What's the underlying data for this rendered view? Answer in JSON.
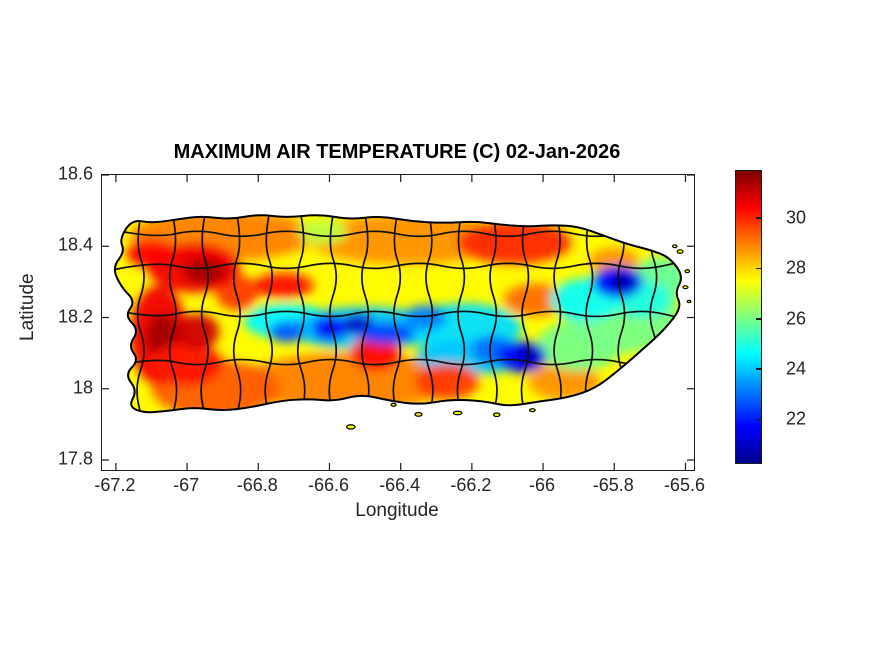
{
  "figure": {
    "background": "#ffffff",
    "text_color": "#262626",
    "axis_color": "#1a1a1a"
  },
  "chart_data": {
    "type": "heatmap",
    "title": "MAXIMUM AIR TEMPERATURE (C) 02-Jan-2026",
    "xlabel": "Longitude",
    "ylabel": "Latitude",
    "region": "Puerto Rico with municipal boundaries",
    "units": "degrees Celsius",
    "xlim": [
      -67.239,
      -65.576
    ],
    "ylim": [
      17.772,
      18.6
    ],
    "xticks": [
      -67.2,
      -67,
      -66.8,
      -66.6,
      -66.4,
      -66.2,
      -66,
      -65.8,
      -65.6
    ],
    "yticks": [
      18.6,
      18.4,
      18.2,
      18,
      17.8
    ],
    "grid": false,
    "colorbar": {
      "position": "right",
      "min": 20.3,
      "max": 31.9,
      "ticks": [
        22,
        24,
        26,
        28,
        30
      ],
      "colormap": "jet",
      "jet_stops": [
        [
          0.0,
          "#00008f"
        ],
        [
          0.125,
          "#0000ff"
        ],
        [
          0.375,
          "#00ffff"
        ],
        [
          0.625,
          "#ffff00"
        ],
        [
          0.875,
          "#ff0000"
        ],
        [
          1.0,
          "#7f0000"
        ]
      ]
    },
    "base_temperature_c": 27.6,
    "temperature_blobs": [
      {
        "lon": -66.9,
        "lat": 18.43,
        "rx": 0.26,
        "ry": 0.07,
        "c": 29.0
      },
      {
        "lon": -66.38,
        "lat": 18.42,
        "rx": 0.28,
        "ry": 0.07,
        "c": 28.8
      },
      {
        "lon": -66.08,
        "lat": 18.41,
        "rx": 0.16,
        "ry": 0.06,
        "c": 30.0
      },
      {
        "lon": -66.55,
        "lat": 18.02,
        "rx": 0.3,
        "ry": 0.08,
        "c": 29.0
      },
      {
        "lon": -66.92,
        "lat": 18.0,
        "rx": 0.18,
        "ry": 0.08,
        "c": 29.4
      },
      {
        "lon": -65.94,
        "lat": 18.02,
        "rx": 0.1,
        "ry": 0.05,
        "c": 28.8
      },
      {
        "lon": -66.02,
        "lat": 18.25,
        "rx": 0.09,
        "ry": 0.045,
        "c": 29.2
      },
      {
        "lon": -65.8,
        "lat": 18.36,
        "rx": 0.07,
        "ry": 0.035,
        "c": 28.8
      },
      {
        "lon": -66.86,
        "lat": 18.27,
        "rx": 0.06,
        "ry": 0.05,
        "c": 29.8
      },
      {
        "lon": -65.78,
        "lat": 18.22,
        "rx": 0.16,
        "ry": 0.12,
        "c": 26.0
      },
      {
        "lon": -65.67,
        "lat": 18.31,
        "rx": 0.08,
        "ry": 0.06,
        "c": 25.8
      },
      {
        "lon": -65.9,
        "lat": 18.12,
        "rx": 0.12,
        "ry": 0.07,
        "c": 26.0
      },
      {
        "lon": -66.62,
        "lat": 18.44,
        "rx": 0.07,
        "ry": 0.035,
        "c": 26.8
      },
      {
        "lon": -66.72,
        "lat": 18.19,
        "rx": 0.12,
        "ry": 0.05,
        "c": 24.6
      },
      {
        "lon": -66.5,
        "lat": 18.17,
        "rx": 0.22,
        "ry": 0.06,
        "c": 24.0
      },
      {
        "lon": -66.22,
        "lat": 18.17,
        "rx": 0.16,
        "ry": 0.07,
        "c": 24.3
      },
      {
        "lon": -66.2,
        "lat": 18.09,
        "rx": 0.16,
        "ry": 0.05,
        "c": 24.0
      },
      {
        "lon": -65.88,
        "lat": 18.25,
        "rx": 0.1,
        "ry": 0.06,
        "c": 24.8
      },
      {
        "lon": -65.72,
        "lat": 18.25,
        "rx": 0.08,
        "ry": 0.05,
        "c": 25.0
      },
      {
        "lon": -66.98,
        "lat": 18.34,
        "rx": 0.13,
        "ry": 0.07,
        "c": 30.6
      },
      {
        "lon": -66.95,
        "lat": 18.33,
        "rx": 0.06,
        "ry": 0.035,
        "c": 31.5
      },
      {
        "lon": -67.1,
        "lat": 18.38,
        "rx": 0.07,
        "ry": 0.04,
        "c": 30.4
      },
      {
        "lon": -67.08,
        "lat": 18.15,
        "rx": 0.08,
        "ry": 0.14,
        "c": 30.6
      },
      {
        "lon": -67.07,
        "lat": 18.15,
        "rx": 0.045,
        "ry": 0.06,
        "c": 31.5
      },
      {
        "lon": -67.0,
        "lat": 18.07,
        "rx": 0.1,
        "ry": 0.06,
        "c": 30.2
      },
      {
        "lon": -66.97,
        "lat": 18.16,
        "rx": 0.06,
        "ry": 0.05,
        "c": 31.0
      },
      {
        "lon": -66.73,
        "lat": 18.29,
        "rx": 0.085,
        "ry": 0.035,
        "c": 30.3
      },
      {
        "lon": -66.47,
        "lat": 18.1,
        "rx": 0.07,
        "ry": 0.05,
        "c": 30.4
      },
      {
        "lon": -66.27,
        "lat": 18.02,
        "rx": 0.09,
        "ry": 0.05,
        "c": 29.8
      },
      {
        "lon": -66.72,
        "lat": 18.16,
        "rx": 0.05,
        "ry": 0.03,
        "c": 22.8
      },
      {
        "lon": -66.6,
        "lat": 18.17,
        "rx": 0.05,
        "ry": 0.035,
        "c": 21.8
      },
      {
        "lon": -66.52,
        "lat": 18.18,
        "rx": 0.045,
        "ry": 0.03,
        "c": 21.0
      },
      {
        "lon": -66.44,
        "lat": 18.155,
        "rx": 0.08,
        "ry": 0.03,
        "c": 22.5
      },
      {
        "lon": -66.33,
        "lat": 18.2,
        "rx": 0.06,
        "ry": 0.035,
        "c": 23.2
      },
      {
        "lon": -66.14,
        "lat": 18.11,
        "rx": 0.06,
        "ry": 0.04,
        "c": 23.0
      },
      {
        "lon": -66.06,
        "lat": 18.09,
        "rx": 0.07,
        "ry": 0.045,
        "c": 21.8
      },
      {
        "lon": -66.04,
        "lat": 18.095,
        "rx": 0.035,
        "ry": 0.025,
        "c": 20.8
      },
      {
        "lon": -65.79,
        "lat": 18.3,
        "rx": 0.07,
        "ry": 0.045,
        "c": 21.8
      },
      {
        "lon": -65.775,
        "lat": 18.3,
        "rx": 0.035,
        "ry": 0.025,
        "c": 20.7
      }
    ],
    "coastline": [
      [
        -67.155,
        18.475
      ],
      [
        -67.1,
        18.465
      ],
      [
        -67.03,
        18.475
      ],
      [
        -66.96,
        18.485
      ],
      [
        -66.88,
        18.475
      ],
      [
        -66.8,
        18.49
      ],
      [
        -66.72,
        18.48
      ],
      [
        -66.63,
        18.49
      ],
      [
        -66.54,
        18.475
      ],
      [
        -66.46,
        18.485
      ],
      [
        -66.37,
        18.47
      ],
      [
        -66.28,
        18.465
      ],
      [
        -66.19,
        18.47
      ],
      [
        -66.115,
        18.46
      ],
      [
        -66.04,
        18.455
      ],
      [
        -65.97,
        18.46
      ],
      [
        -65.9,
        18.455
      ],
      [
        -65.83,
        18.43
      ],
      [
        -65.76,
        18.405
      ],
      [
        -65.7,
        18.39
      ],
      [
        -65.645,
        18.37
      ],
      [
        -65.605,
        18.315
      ],
      [
        -65.63,
        18.27
      ],
      [
        -65.61,
        18.23
      ],
      [
        -65.655,
        18.17
      ],
      [
        -65.715,
        18.115
      ],
      [
        -65.79,
        18.05
      ],
      [
        -65.855,
        18.0
      ],
      [
        -65.93,
        17.975
      ],
      [
        -66.01,
        17.965
      ],
      [
        -66.095,
        17.95
      ],
      [
        -66.17,
        17.966
      ],
      [
        -66.26,
        17.97
      ],
      [
        -66.345,
        17.955
      ],
      [
        -66.43,
        17.966
      ],
      [
        -66.51,
        17.985
      ],
      [
        -66.585,
        17.965
      ],
      [
        -66.66,
        17.972
      ],
      [
        -66.74,
        17.966
      ],
      [
        -66.82,
        17.948
      ],
      [
        -66.9,
        17.938
      ],
      [
        -66.98,
        17.948
      ],
      [
        -67.055,
        17.938
      ],
      [
        -67.12,
        17.932
      ],
      [
        -67.165,
        17.95
      ],
      [
        -67.14,
        17.995
      ],
      [
        -67.175,
        18.04
      ],
      [
        -67.135,
        18.08
      ],
      [
        -67.165,
        18.12
      ],
      [
        -67.135,
        18.165
      ],
      [
        -67.175,
        18.205
      ],
      [
        -67.145,
        18.245
      ],
      [
        -67.185,
        18.285
      ],
      [
        -67.21,
        18.34
      ],
      [
        -67.175,
        18.385
      ],
      [
        -67.19,
        18.42
      ]
    ],
    "islets": [
      {
        "lon": -66.54,
        "lat": 17.893,
        "rx": 0.012,
        "ry": 0.006
      },
      {
        "lon": -66.42,
        "lat": 17.955,
        "rx": 0.007,
        "ry": 0.004
      },
      {
        "lon": -66.35,
        "lat": 17.928,
        "rx": 0.01,
        "ry": 0.005
      },
      {
        "lon": -66.24,
        "lat": 17.932,
        "rx": 0.012,
        "ry": 0.005
      },
      {
        "lon": -66.13,
        "lat": 17.927,
        "rx": 0.009,
        "ry": 0.005
      },
      {
        "lon": -66.03,
        "lat": 17.94,
        "rx": 0.008,
        "ry": 0.004
      },
      {
        "lon": -65.63,
        "lat": 18.4,
        "rx": 0.006,
        "ry": 0.004
      },
      {
        "lon": -65.615,
        "lat": 18.385,
        "rx": 0.008,
        "ry": 0.005
      },
      {
        "lon": -65.595,
        "lat": 18.33,
        "rx": 0.006,
        "ry": 0.004
      },
      {
        "lon": -65.6,
        "lat": 18.285,
        "rx": 0.007,
        "ry": 0.004
      },
      {
        "lon": -65.59,
        "lat": 18.245,
        "rx": 0.005,
        "ry": 0.003
      }
    ],
    "municipal_borders": {
      "vertical_lons": [
        -67.13,
        -67.04,
        -66.95,
        -66.86,
        -66.77,
        -66.68,
        -66.59,
        -66.5,
        -66.41,
        -66.32,
        -66.23,
        -66.14,
        -66.05,
        -65.96,
        -65.87,
        -65.78,
        -65.69
      ],
      "vertical_lat_span": [
        17.9,
        18.52
      ],
      "vertical_jitter": 0.018,
      "horizontal_lats": [
        18.435,
        18.345,
        18.21,
        18.075
      ],
      "horizontal_lon_span": [
        -67.22,
        -65.6
      ],
      "horizontal_jitter": 0.014
    }
  }
}
